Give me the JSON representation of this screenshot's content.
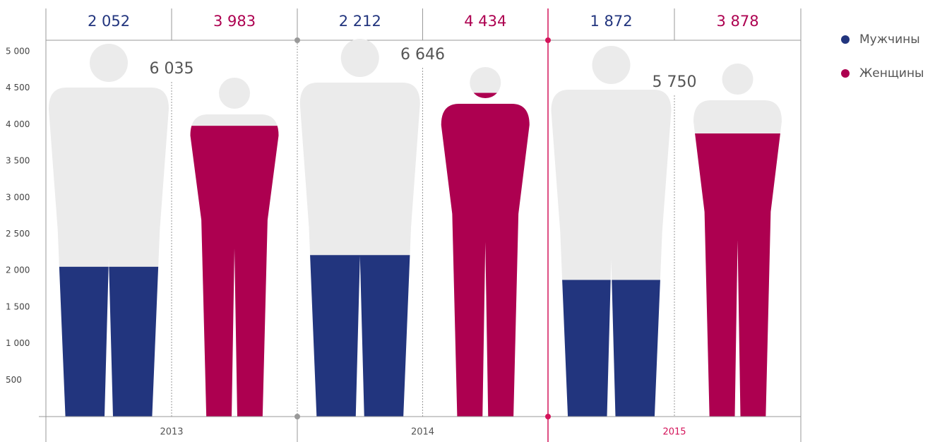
{
  "chart_data": {
    "type": "pictogram_bar",
    "categories": [
      "2013",
      "2014",
      "2015"
    ],
    "series": [
      {
        "name": "Мужчины",
        "color": "#22357e",
        "values": [
          2052,
          2212,
          1872
        ],
        "value_labels": [
          "2 052",
          "2 212",
          "1 872"
        ]
      },
      {
        "name": "Женщины",
        "color": "#ad0050",
        "values": [
          3983,
          4434,
          3878
        ],
        "value_labels": [
          "3 983",
          "4 434",
          "3 878"
        ]
      }
    ],
    "totals": [
      6035,
      6646,
      5750
    ],
    "total_labels": [
      "6 035",
      "6 646",
      "5 750"
    ],
    "ylim": [
      0,
      5000
    ],
    "yticks": [
      {
        "value": 500,
        "label": "500"
      },
      {
        "value": 1000,
        "label": "1 000"
      },
      {
        "value": 1500,
        "label": "1 500"
      },
      {
        "value": 2000,
        "label": "2 000"
      },
      {
        "value": 2500,
        "label": "2 500"
      },
      {
        "value": 3000,
        "label": "3 000"
      },
      {
        "value": 3500,
        "label": "3 500"
      },
      {
        "value": 4000,
        "label": "4 000"
      },
      {
        "value": 4500,
        "label": "4 500"
      },
      {
        "value": 5000,
        "label": "5 000"
      }
    ],
    "legend": "right"
  }
}
